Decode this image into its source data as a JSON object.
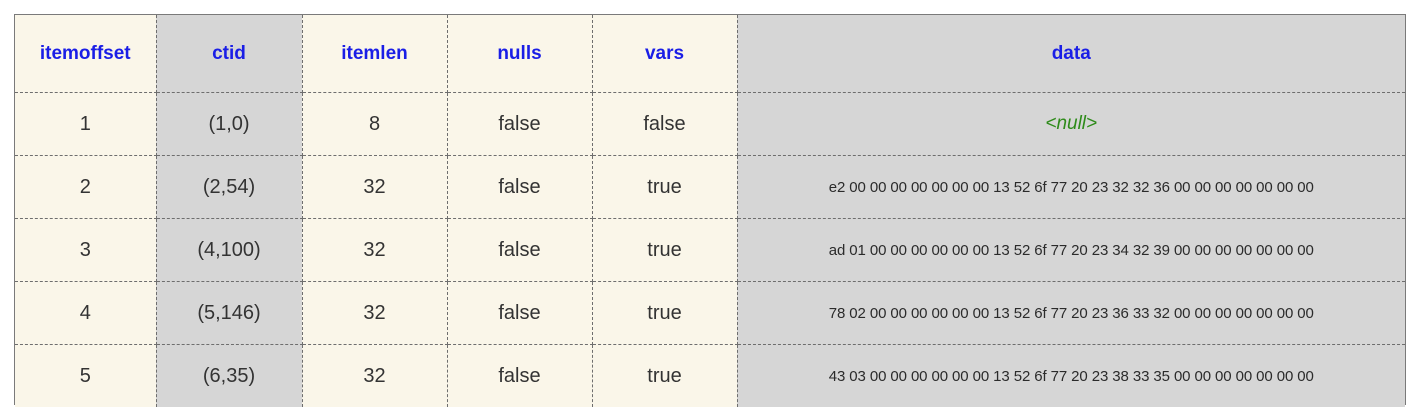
{
  "table": {
    "headers": [
      "itemoffset",
      "ctid",
      "itemlen",
      "nulls",
      "vars",
      "data"
    ],
    "rows": [
      {
        "itemoffset": "1",
        "ctid": "(1,0)",
        "itemlen": "8",
        "nulls": "false",
        "vars": "false",
        "data": "<null>"
      },
      {
        "itemoffset": "2",
        "ctid": "(2,54)",
        "itemlen": "32",
        "nulls": "false",
        "vars": "true",
        "data": "e2 00 00 00 00 00 00 00 13 52 6f 77 20 23 32 32 36 00 00 00 00 00 00 00"
      },
      {
        "itemoffset": "3",
        "ctid": "(4,100)",
        "itemlen": "32",
        "nulls": "false",
        "vars": "true",
        "data": "ad 01 00 00 00 00 00 00 13 52 6f 77 20 23 34 32 39 00 00 00 00 00 00 00"
      },
      {
        "itemoffset": "4",
        "ctid": "(5,146)",
        "itemlen": "32",
        "nulls": "false",
        "vars": "true",
        "data": "78 02 00 00 00 00 00 00 13 52 6f 77 20 23 36 33 32 00 00 00 00 00 00 00"
      },
      {
        "itemoffset": "5",
        "ctid": "(6,35)",
        "itemlen": "32",
        "nulls": "false",
        "vars": "true",
        "data": "43 03 00 00 00 00 00 00 13 52 6f 77 20 23 38 33 35 00 00 00 00 00 00 00"
      }
    ]
  },
  "colors": {
    "header_text": "#1a1ee6",
    "cream_column": "#faf6e9",
    "gray_column": "#d6d6d6",
    "null_text": "#2e8b1a"
  }
}
